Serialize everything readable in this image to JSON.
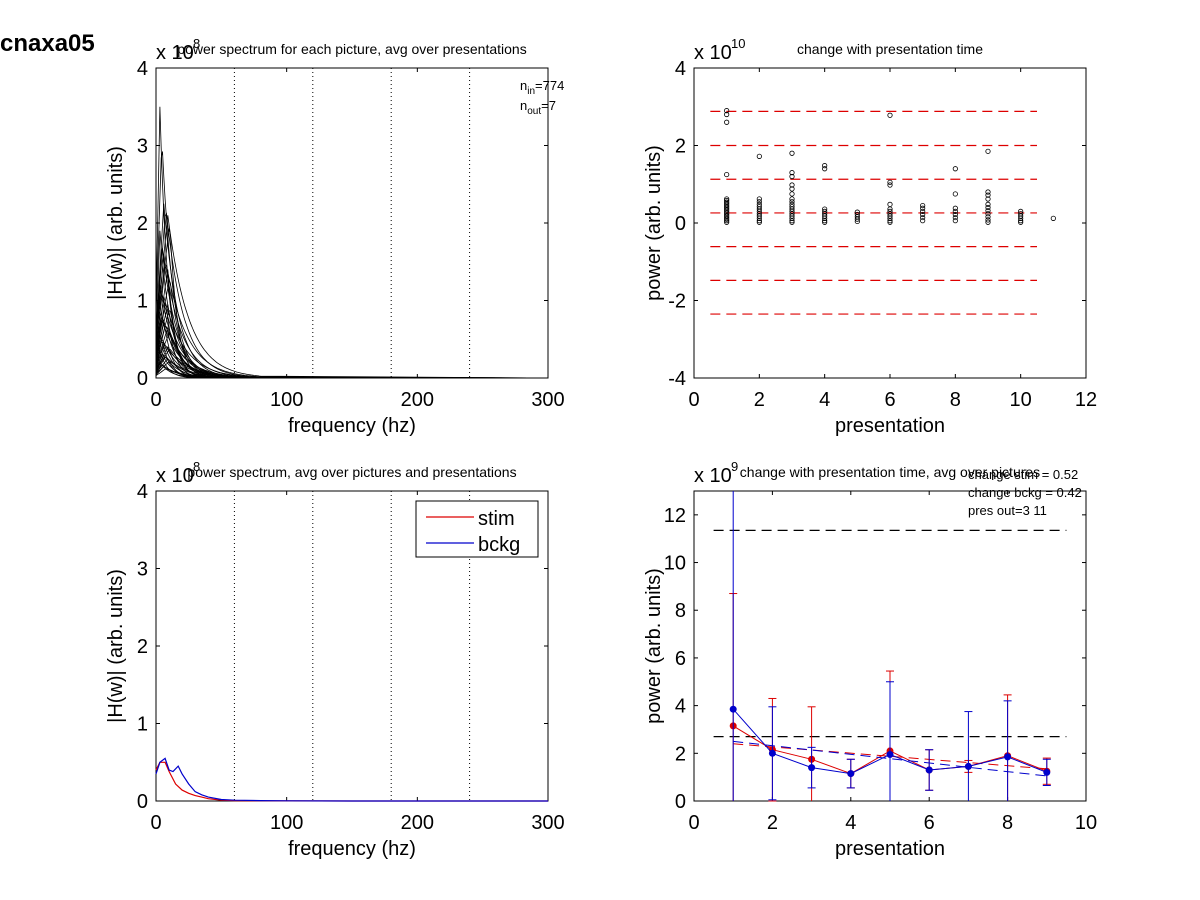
{
  "figure_title": "cnaxa05",
  "chart_data": [
    {
      "id": "p1",
      "type": "line",
      "title": "power spectrum for each picture, avg over presentations",
      "xlabel": "frequency (hz)",
      "ylabel": "|H(w)| (arb. units)",
      "xlim": [
        0,
        300
      ],
      "ylim": [
        0,
        4
      ],
      "xticks": [
        "0",
        "100",
        "200",
        "300"
      ],
      "yticks": [
        "0",
        "1",
        "2",
        "3",
        "4"
      ],
      "multiplier": "x 10",
      "exponent": "8",
      "vlines": [
        60,
        120,
        180,
        240,
        300
      ],
      "annotations": {
        "n_in": "=774",
        "n_out": "=7"
      },
      "series_description": "one spectrum per picture (all black)",
      "peaks": [
        3.5,
        3.1,
        2.25,
        2.2,
        2.1,
        2.0,
        1.9,
        1.75,
        1.6,
        1.5,
        1.4,
        1.3,
        1.2,
        1.1,
        1.05,
        1.0,
        0.95,
        0.9,
        0.85,
        0.8,
        0.75,
        0.7,
        0.65,
        0.6,
        0.55,
        0.5,
        0.45,
        0.42,
        0.4,
        0.38,
        0.35,
        0.32,
        0.3,
        0.28,
        0.25,
        0.22,
        0.2,
        0.18,
        0.15,
        0.12
      ]
    },
    {
      "id": "p2",
      "type": "scatter",
      "title": "change with presentation time",
      "xlabel": "presentation",
      "ylabel": "power (arb. units)",
      "xlim": [
        0,
        12
      ],
      "ylim": [
        -4,
        4
      ],
      "xticks": [
        "0",
        "2",
        "4",
        "6",
        "8",
        "10",
        "12"
      ],
      "yticks": [
        "-4",
        "-2",
        "0",
        "2",
        "4"
      ],
      "multiplier": "x 10",
      "exponent": "10",
      "hlines": [
        2.88,
        2.0,
        1.13,
        0.26,
        -0.61,
        -1.48,
        -2.35
      ],
      "hline_range": [
        0.5,
        10.5
      ],
      "hline_color": "#dd0000",
      "points": [
        [
          1,
          2.9
        ],
        [
          1,
          2.8
        ],
        [
          1,
          2.6
        ],
        [
          1,
          1.25
        ],
        [
          1,
          0.62
        ],
        [
          1,
          0.58
        ],
        [
          1,
          0.54
        ],
        [
          1,
          0.5
        ],
        [
          1,
          0.46
        ],
        [
          1,
          0.42
        ],
        [
          1,
          0.38
        ],
        [
          1,
          0.34
        ],
        [
          1,
          0.3
        ],
        [
          1,
          0.26
        ],
        [
          1,
          0.22
        ],
        [
          1,
          0.18
        ],
        [
          1,
          0.14
        ],
        [
          1,
          0.1
        ],
        [
          1,
          0.06
        ],
        [
          1,
          0.02
        ],
        [
          2,
          1.72
        ],
        [
          2,
          0.62
        ],
        [
          2,
          0.55
        ],
        [
          2,
          0.48
        ],
        [
          2,
          0.42
        ],
        [
          2,
          0.36
        ],
        [
          2,
          0.3
        ],
        [
          2,
          0.24
        ],
        [
          2,
          0.18
        ],
        [
          2,
          0.12
        ],
        [
          2,
          0.06
        ],
        [
          2,
          0.02
        ],
        [
          3,
          1.8
        ],
        [
          3,
          1.3
        ],
        [
          3,
          1.2
        ],
        [
          3,
          0.98
        ],
        [
          3,
          0.88
        ],
        [
          3,
          0.75
        ],
        [
          3,
          0.62
        ],
        [
          3,
          0.55
        ],
        [
          3,
          0.48
        ],
        [
          3,
          0.42
        ],
        [
          3,
          0.36
        ],
        [
          3,
          0.3
        ],
        [
          3,
          0.24
        ],
        [
          3,
          0.18
        ],
        [
          3,
          0.12
        ],
        [
          3,
          0.06
        ],
        [
          3,
          0.02
        ],
        [
          4,
          1.48
        ],
        [
          4,
          1.4
        ],
        [
          4,
          0.36
        ],
        [
          4,
          0.3
        ],
        [
          4,
          0.24
        ],
        [
          4,
          0.18
        ],
        [
          4,
          0.12
        ],
        [
          4,
          0.06
        ],
        [
          4,
          0.02
        ],
        [
          5,
          0.28
        ],
        [
          5,
          0.22
        ],
        [
          5,
          0.16
        ],
        [
          5,
          0.1
        ],
        [
          5,
          0.04
        ],
        [
          6,
          2.78
        ],
        [
          6,
          1.05
        ],
        [
          6,
          0.98
        ],
        [
          6,
          0.48
        ],
        [
          6,
          0.36
        ],
        [
          6,
          0.3
        ],
        [
          6,
          0.24
        ],
        [
          6,
          0.18
        ],
        [
          6,
          0.12
        ],
        [
          6,
          0.06
        ],
        [
          6,
          0.02
        ],
        [
          7,
          0.45
        ],
        [
          7,
          0.38
        ],
        [
          7,
          0.3
        ],
        [
          7,
          0.22
        ],
        [
          7,
          0.14
        ],
        [
          7,
          0.06
        ],
        [
          8,
          1.4
        ],
        [
          8,
          0.75
        ],
        [
          8,
          0.38
        ],
        [
          8,
          0.3
        ],
        [
          8,
          0.22
        ],
        [
          8,
          0.14
        ],
        [
          8,
          0.06
        ],
        [
          9,
          1.85
        ],
        [
          9,
          0.8
        ],
        [
          9,
          0.72
        ],
        [
          9,
          0.62
        ],
        [
          9,
          0.48
        ],
        [
          9,
          0.4
        ],
        [
          9,
          0.32
        ],
        [
          9,
          0.24
        ],
        [
          9,
          0.16
        ],
        [
          9,
          0.08
        ],
        [
          9,
          0.02
        ],
        [
          10,
          0.3
        ],
        [
          10,
          0.24
        ],
        [
          10,
          0.18
        ],
        [
          10,
          0.12
        ],
        [
          10,
          0.06
        ],
        [
          10,
          0.02
        ],
        [
          11,
          0.12
        ]
      ]
    },
    {
      "id": "p3",
      "type": "line",
      "title": "power spectrum, avg over pictures and presentations",
      "xlabel": "frequency (hz)",
      "ylabel": "|H(w)| (arb. units)",
      "xlim": [
        0,
        300
      ],
      "ylim": [
        0,
        4
      ],
      "xticks": [
        "0",
        "100",
        "200",
        "300"
      ],
      "yticks": [
        "0",
        "1",
        "2",
        "3",
        "4"
      ],
      "multiplier": "x 10",
      "exponent": "8",
      "vlines": [
        60,
        120,
        180,
        240,
        300
      ],
      "legend": {
        "position": "top-right",
        "entries": [
          "stim",
          "bckg"
        ]
      },
      "series": [
        {
          "name": "stim",
          "color": "#dd0000",
          "x": [
            0,
            3,
            7,
            10,
            15,
            20,
            25,
            30,
            35,
            40,
            50,
            60,
            80,
            100,
            150,
            200,
            250,
            300
          ],
          "y": [
            0.4,
            0.5,
            0.5,
            0.38,
            0.22,
            0.14,
            0.1,
            0.07,
            0.05,
            0.03,
            0.01,
            0.005,
            0.002,
            0.001,
            0,
            0,
            0,
            0
          ]
        },
        {
          "name": "bckg",
          "color": "#0000cc",
          "x": [
            0,
            3,
            7,
            10,
            13,
            17,
            20,
            25,
            30,
            35,
            40,
            50,
            60,
            80,
            100,
            150,
            200,
            250,
            300
          ],
          "y": [
            0.35,
            0.5,
            0.55,
            0.4,
            0.38,
            0.45,
            0.35,
            0.22,
            0.12,
            0.08,
            0.05,
            0.02,
            0.01,
            0.005,
            0.002,
            0,
            0,
            0,
            0
          ]
        }
      ]
    },
    {
      "id": "p4",
      "type": "line",
      "title": "change with presentation time, avg over pictures",
      "xlabel": "presentation",
      "ylabel": "power (arb. units)",
      "xlim": [
        0,
        10
      ],
      "ylim": [
        0,
        13
      ],
      "xticks": [
        "0",
        "2",
        "4",
        "6",
        "8",
        "10"
      ],
      "yticks": [
        "0",
        "2",
        "4",
        "6",
        "8",
        "10",
        "12"
      ],
      "multiplier": "x 10",
      "exponent": "9",
      "annotations": [
        "change stim = 0.52",
        "change bckg = 0.42",
        "pres out=3 11"
      ],
      "hlines": [
        11.35,
        2.7
      ],
      "hline_range": [
        0.5,
        9.5
      ],
      "series": [
        {
          "name": "stim",
          "color": "#dd0000",
          "x": [
            1,
            2,
            3,
            4,
            5,
            6,
            7,
            8,
            9
          ],
          "y": [
            3.15,
            2.15,
            1.75,
            1.15,
            2.1,
            1.3,
            1.45,
            1.9,
            1.25
          ],
          "err": [
            5.55,
            2.15,
            2.2,
            0.6,
            3.35,
            0.85,
            0.25,
            2.55,
            0.55
          ],
          "fit": [
            [
              1,
              2.4
            ],
            [
              9,
              1.35
            ]
          ]
        },
        {
          "name": "bckg",
          "color": "#0000cc",
          "x": [
            1,
            2,
            3,
            4,
            5,
            6,
            7,
            8,
            9
          ],
          "y": [
            3.85,
            2.0,
            1.4,
            1.15,
            1.95,
            1.3,
            1.45,
            1.85,
            1.2
          ],
          "err": [
            9.2,
            1.95,
            0.85,
            0.6,
            3.05,
            0.85,
            2.3,
            2.35,
            0.55
          ],
          "fit": [
            [
              1,
              2.5
            ],
            [
              9,
              1.05
            ]
          ]
        }
      ]
    }
  ]
}
